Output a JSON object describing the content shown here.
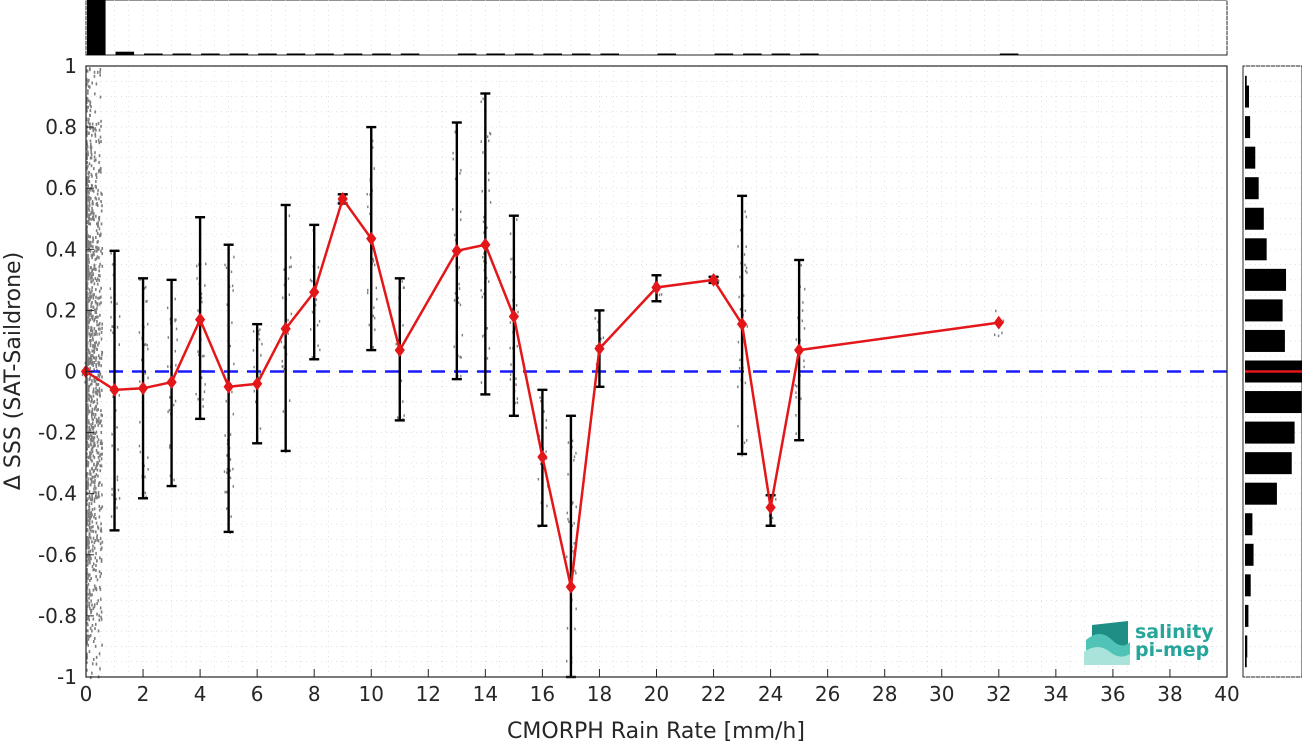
{
  "chart_data": {
    "type": "line",
    "xlabel": "CMORPH Rain Rate [mm/h]",
    "ylabel": "Δ SSS (SAT-Saildrone)",
    "xlim": [
      0,
      40
    ],
    "ylim": [
      -1,
      1
    ],
    "x_ticks": [
      0,
      2,
      4,
      6,
      8,
      10,
      12,
      14,
      16,
      18,
      20,
      22,
      24,
      26,
      28,
      30,
      32,
      34,
      36,
      38,
      40
    ],
    "y_ticks": [
      -1,
      -0.8,
      -0.6,
      -0.4,
      -0.2,
      0,
      0.2,
      0.4,
      0.6,
      0.8,
      1
    ],
    "grid": true,
    "reference_line": {
      "y": 0,
      "color": "#1a1aff",
      "style": "dashed"
    },
    "series": [
      {
        "color": "#e3171a",
        "marker": "diamond",
        "x": [
          0,
          1,
          2,
          3,
          4,
          5,
          6,
          7,
          8,
          9,
          10,
          11,
          13,
          14,
          15,
          16,
          17,
          18,
          20,
          22,
          23,
          24,
          25,
          32
        ],
        "y": [
          0,
          -0.06,
          -0.055,
          -0.035,
          0.17,
          -0.05,
          -0.04,
          0.14,
          0.26,
          0.565,
          0.435,
          0.07,
          0.395,
          0.415,
          0.18,
          -0.28,
          -0.705,
          0.075,
          0.275,
          0.3,
          0.155,
          -0.445,
          0.07,
          0.16
        ],
        "err_low": [
          null,
          -0.52,
          -0.415,
          -0.375,
          -0.155,
          -0.525,
          -0.235,
          -0.26,
          0.04,
          0.55,
          0.07,
          -0.16,
          -0.025,
          -0.075,
          -0.145,
          -0.505,
          -1.0,
          -0.05,
          0.23,
          0.29,
          -0.27,
          -0.505,
          -0.225,
          null
        ],
        "err_high": [
          null,
          0.395,
          0.305,
          0.3,
          0.505,
          0.415,
          0.155,
          0.545,
          0.48,
          0.58,
          0.8,
          0.305,
          0.815,
          0.91,
          0.51,
          -0.06,
          -0.145,
          0.2,
          0.315,
          0.31,
          0.575,
          -0.405,
          0.365,
          null
        ]
      }
    ],
    "scatter_background": {
      "color": "#7f7f7f"
    },
    "top_histogram": {
      "bin_width": 1,
      "values": [
        1.0,
        0.06,
        0.02,
        0.01,
        0.005,
        0.004,
        0.003,
        0.003,
        0.002,
        0.003,
        0.002,
        0.001,
        0,
        0.001,
        0.002,
        0.001,
        0.001,
        0.001,
        0.001,
        0,
        0.001,
        0,
        0.001,
        0.001,
        0.001,
        0.001,
        0,
        0,
        0,
        0,
        0,
        0,
        0.001
      ]
    },
    "right_histogram": {
      "y_centers": [
        0.95,
        0.9,
        0.8,
        0.7,
        0.6,
        0.5,
        0.4,
        0.3,
        0.2,
        0.1,
        0,
        -0.1,
        -0.2,
        -0.3,
        -0.4,
        -0.5,
        -0.6,
        -0.7,
        -0.8,
        -0.9,
        -0.95
      ],
      "values": [
        0.03,
        0.07,
        0.09,
        0.18,
        0.24,
        0.33,
        0.38,
        0.72,
        0.66,
        0.7,
        1.0,
        0.99,
        0.87,
        0.82,
        0.56,
        0.13,
        0.15,
        0.1,
        0.06,
        0.04,
        0.03
      ],
      "median_color": "#e3171a"
    }
  },
  "logo": {
    "line1": "salinity",
    "line2": "pi-mep",
    "color": "#26a69a"
  }
}
